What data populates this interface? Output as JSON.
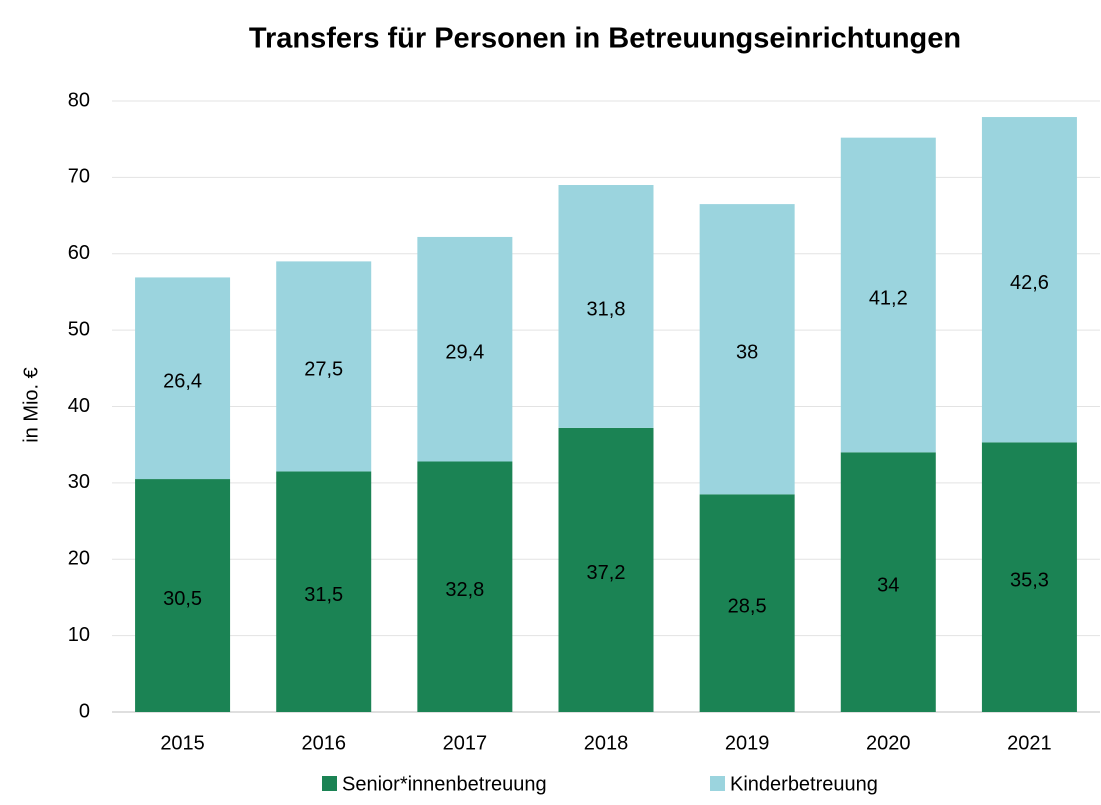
{
  "chart_data": {
    "type": "stacked_bar",
    "title": "Transfers für Personen in Betreuungseinrichtungen",
    "y_label": "in Mio. €",
    "categories": [
      "2015",
      "2016",
      "2017",
      "2018",
      "2019",
      "2020",
      "2021"
    ],
    "series": [
      {
        "name": "Senior*innenbetreuung",
        "color": "#1b8354",
        "values": [
          30.5,
          31.5,
          32.8,
          37.2,
          28.5,
          34,
          35.3
        ],
        "value_labels": [
          "30,5",
          "31,5",
          "32,8",
          "37,2",
          "28,5",
          "34",
          "35,3"
        ]
      },
      {
        "name": "Kinderbetreuung",
        "color": "#9bd4de",
        "values": [
          26.4,
          27.5,
          29.4,
          31.8,
          38,
          41.2,
          42.6
        ],
        "value_labels": [
          "26,4",
          "27,5",
          "29,4",
          "31,8",
          "38",
          "41,2",
          "42,6"
        ]
      }
    ],
    "ylim": [
      0,
      80
    ],
    "yticks": [
      0,
      10,
      20,
      30,
      40,
      50,
      60,
      70,
      80
    ],
    "grid": true,
    "legend": "bottom"
  }
}
